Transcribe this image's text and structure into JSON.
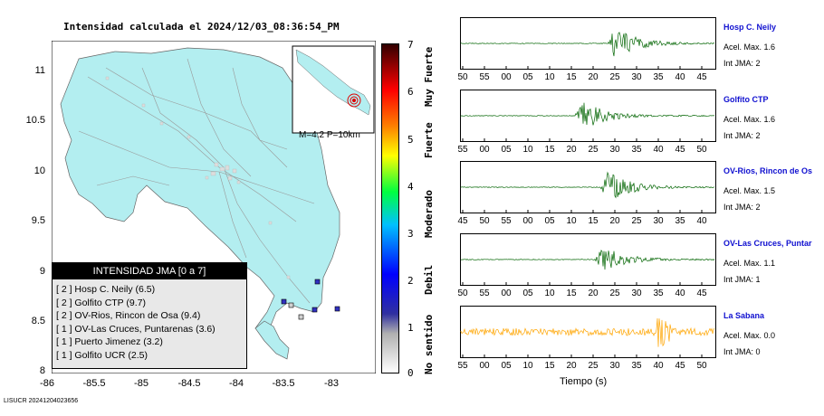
{
  "title": "Intensidad calculada el 2024/12/03_08:36:54_PM",
  "footer": "LISUCR 20241204023656",
  "map": {
    "yticks": [
      "11",
      "10.5",
      "10",
      "9.5",
      "9",
      "8.5",
      "8"
    ],
    "xticks": [
      "-86",
      "-85.5",
      "-85",
      "-84.5",
      "-84",
      "-83.5",
      "-83"
    ],
    "land_color": "#b3eef0",
    "ocean_color": "#ffffff",
    "inset_label": "M=4.2 P=10km",
    "epicenter_color": "#e00000"
  },
  "colorbar": {
    "ticks": [
      "7",
      "6",
      "5",
      "4",
      "3",
      "2",
      "1",
      "0"
    ],
    "labels": [
      {
        "text": "Muy Fuerte",
        "color": "#000000"
      },
      {
        "text": "Fuerte",
        "color": "#000000"
      },
      {
        "text": "Moderado",
        "color": "#000000"
      },
      {
        "text": "Debil",
        "color": "#000000"
      },
      {
        "text": "No sentido",
        "color": "#000000"
      }
    ]
  },
  "legend": {
    "title": "INTENSIDAD JMA [0 a 7]",
    "items": [
      "[ 2 ]  Hosp C. Neily (6.5)",
      "[ 2 ]  Golfito CTP (9.7)",
      "[ 2 ]  OV-Rios, Rincon de Osa (9.4)",
      "[ 1 ]  OV-Las Cruces, Puntarenas (3.6)",
      "[ 1 ]  Puerto Jimenez (3.2)",
      "[ 1 ]  Golfito UCR (2.5)"
    ]
  },
  "stations": [
    {
      "name": "Hosp C. Neily",
      "acc": "Acel. Max. 1.6",
      "int": "Int JMA: 2",
      "color": "#006400",
      "ticks": [
        "50",
        "55",
        "00",
        "05",
        "10",
        "15",
        "20",
        "25",
        "30",
        "35",
        "40",
        "45"
      ]
    },
    {
      "name": "Golfito CTP",
      "acc": "Acel. Max. 1.6",
      "int": "Int JMA: 2",
      "color": "#006400",
      "ticks": [
        "55",
        "00",
        "05",
        "10",
        "15",
        "20",
        "25",
        "30",
        "35",
        "40",
        "45",
        "50"
      ]
    },
    {
      "name": "OV-Rios, Rincon de Os",
      "acc": "Acel. Max. 1.5",
      "int": "Int JMA: 2",
      "color": "#006400",
      "ticks": [
        "45",
        "50",
        "55",
        "00",
        "05",
        "10",
        "15",
        "20",
        "25",
        "30",
        "35",
        "40"
      ]
    },
    {
      "name": "OV-Las Cruces, Puntar",
      "acc": "Acel. Max. 1.1",
      "int": "Int JMA: 1",
      "color": "#006400",
      "ticks": [
        "50",
        "55",
        "00",
        "05",
        "10",
        "15",
        "20",
        "25",
        "30",
        "35",
        "40",
        "45"
      ]
    },
    {
      "name": "La Sabana",
      "acc": "Acel. Max. 0.0",
      "int": "Int JMA: 0",
      "color": "#ffa500",
      "ticks": [
        "55",
        "00",
        "05",
        "10",
        "15",
        "20",
        "25",
        "30",
        "35",
        "40",
        "45",
        "50"
      ]
    }
  ],
  "xlabel": "Tiempo (s)"
}
